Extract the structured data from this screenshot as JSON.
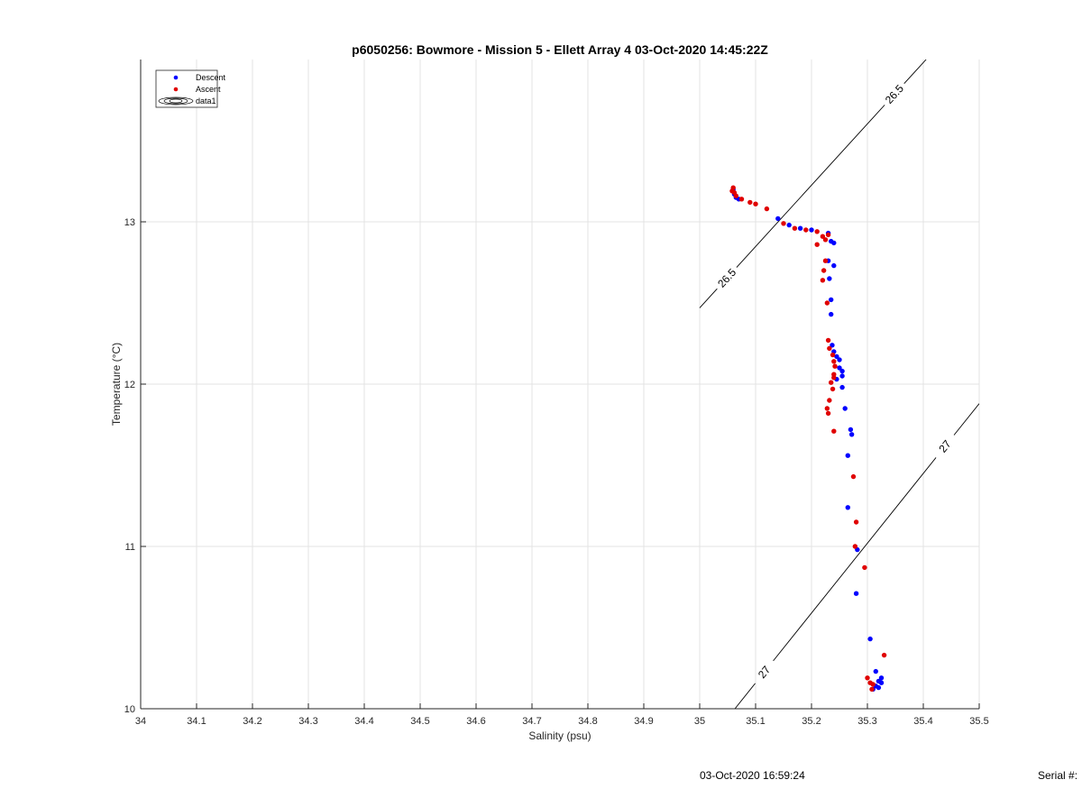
{
  "chart_data": {
    "type": "scatter",
    "title": "p6050256: Bowmore - Mission 5 - Ellett Array 4 03-Oct-2020 14:45:22Z",
    "xlabel": "Salinity (psu)",
    "ylabel": "Temperature (°C)",
    "xlim": [
      34,
      35.5
    ],
    "ylim": [
      10,
      14
    ],
    "x_ticks": [
      "34",
      "34.1",
      "34.2",
      "34.3",
      "34.4",
      "34.5",
      "34.6",
      "34.7",
      "34.8",
      "34.9",
      "35",
      "35.1",
      "35.2",
      "35.3",
      "35.4",
      "35.5"
    ],
    "y_ticks": [
      "10",
      "11",
      "12",
      "13"
    ],
    "grid": true,
    "legend_position": "top-left",
    "legend": [
      "Descent",
      "Ascent",
      "data1"
    ],
    "series": [
      {
        "name": "Descent",
        "color": "#0000ff",
        "points": [
          [
            35.06,
            13.2
          ],
          [
            35.062,
            13.17
          ],
          [
            35.065,
            13.15
          ],
          [
            35.07,
            13.14
          ],
          [
            35.14,
            13.02
          ],
          [
            35.16,
            12.98
          ],
          [
            35.18,
            12.96
          ],
          [
            35.2,
            12.95
          ],
          [
            35.23,
            12.93
          ],
          [
            35.235,
            12.88
          ],
          [
            35.24,
            12.87
          ],
          [
            35.23,
            12.76
          ],
          [
            35.24,
            12.73
          ],
          [
            35.232,
            12.65
          ],
          [
            35.235,
            12.52
          ],
          [
            35.235,
            12.43
          ],
          [
            35.237,
            12.24
          ],
          [
            35.24,
            12.2
          ],
          [
            35.245,
            12.17
          ],
          [
            35.25,
            12.15
          ],
          [
            35.25,
            12.1
          ],
          [
            35.255,
            12.08
          ],
          [
            35.255,
            12.05
          ],
          [
            35.245,
            12.03
          ],
          [
            35.255,
            11.98
          ],
          [
            35.26,
            11.85
          ],
          [
            35.27,
            11.72
          ],
          [
            35.272,
            11.69
          ],
          [
            35.265,
            11.56
          ],
          [
            35.265,
            11.24
          ],
          [
            35.282,
            10.98
          ],
          [
            35.28,
            10.71
          ],
          [
            35.305,
            10.43
          ],
          [
            35.315,
            10.23
          ],
          [
            35.325,
            10.19
          ],
          [
            35.32,
            10.17
          ],
          [
            35.325,
            10.16
          ],
          [
            35.315,
            10.14
          ],
          [
            35.31,
            10.12
          ],
          [
            35.32,
            10.13
          ]
        ]
      },
      {
        "name": "Ascent",
        "color": "#e00000",
        "points": [
          [
            35.058,
            13.19
          ],
          [
            35.06,
            13.21
          ],
          [
            35.062,
            13.18
          ],
          [
            35.065,
            13.16
          ],
          [
            35.075,
            13.14
          ],
          [
            35.09,
            13.12
          ],
          [
            35.1,
            13.11
          ],
          [
            35.12,
            13.08
          ],
          [
            35.15,
            12.99
          ],
          [
            35.17,
            12.96
          ],
          [
            35.19,
            12.95
          ],
          [
            35.21,
            12.94
          ],
          [
            35.22,
            12.91
          ],
          [
            35.225,
            12.89
          ],
          [
            35.23,
            12.92
          ],
          [
            35.21,
            12.86
          ],
          [
            35.225,
            12.76
          ],
          [
            35.222,
            12.7
          ],
          [
            35.22,
            12.64
          ],
          [
            35.228,
            12.5
          ],
          [
            35.23,
            12.27
          ],
          [
            35.232,
            12.22
          ],
          [
            35.238,
            12.18
          ],
          [
            35.24,
            12.14
          ],
          [
            35.242,
            12.11
          ],
          [
            35.24,
            12.06
          ],
          [
            35.24,
            12.04
          ],
          [
            35.235,
            12.01
          ],
          [
            35.238,
            11.97
          ],
          [
            35.232,
            11.9
          ],
          [
            35.228,
            11.85
          ],
          [
            35.23,
            11.82
          ],
          [
            35.24,
            11.71
          ],
          [
            35.275,
            11.43
          ],
          [
            35.28,
            11.15
          ],
          [
            35.278,
            11.0
          ],
          [
            35.295,
            10.87
          ],
          [
            35.33,
            10.33
          ],
          [
            35.3,
            10.19
          ],
          [
            35.305,
            10.16
          ],
          [
            35.31,
            10.15
          ],
          [
            35.308,
            10.12
          ]
        ]
      }
    ],
    "isopycnals": [
      {
        "label": "26.5",
        "points": [
          [
            35.0,
            12.47
          ],
          [
            35.405,
            14.0
          ]
        ]
      },
      {
        "label": "27",
        "points": [
          [
            35.063,
            10.0
          ],
          [
            35.5,
            11.88
          ]
        ]
      }
    ]
  },
  "footer": {
    "timestamp": "03-Oct-2020 16:59:24",
    "serial_label": "Serial #:"
  },
  "colors": {
    "descent": "#0000ff",
    "ascent": "#e00000",
    "grid": "#e3e3e3",
    "axis": "#262626"
  }
}
